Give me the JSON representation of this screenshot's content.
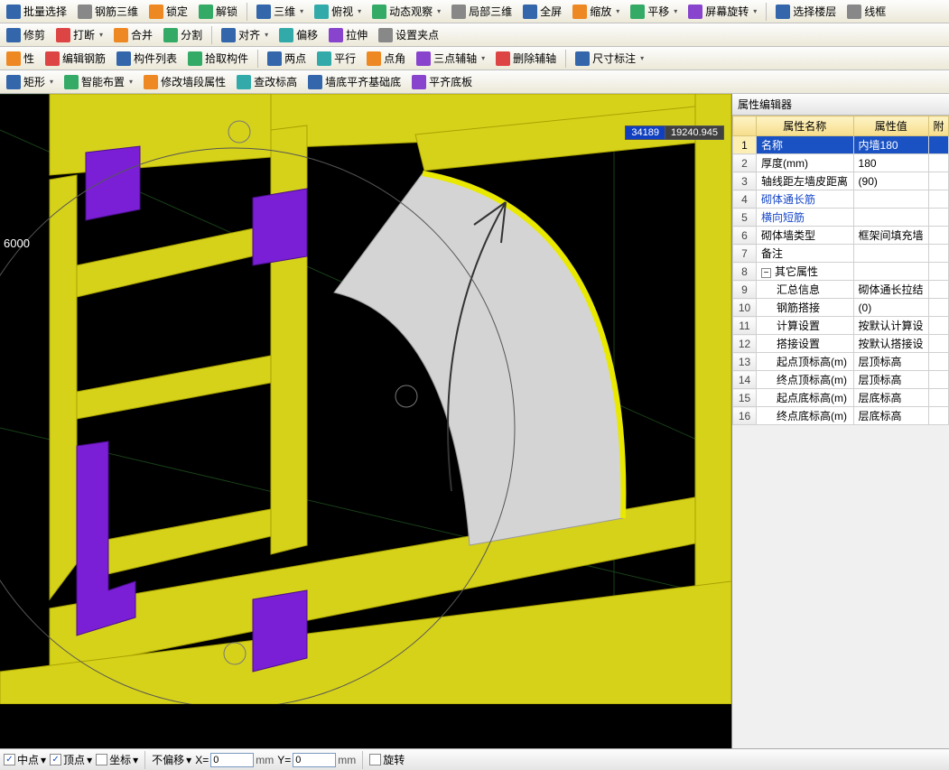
{
  "colors": {
    "toolbar_bg_top": "#fdfdfd",
    "toolbar_bg_bot": "#ece9d8",
    "viewport_bg": "#000000",
    "wall_fill": "#d6d21a",
    "wall_dark": "#a8a200",
    "column_fill": "#7a1fd6",
    "curved_slab": "#d4d4d4",
    "grid_line": "#184018",
    "selection_blue": "#1a52c4",
    "header_yellow_top": "#fdf3c5",
    "header_yellow_bot": "#f7dd8b"
  },
  "toolbars": {
    "row1": [
      {
        "label": "批量选择",
        "icon": "blue"
      },
      {
        "label": "钢筋三维",
        "icon": "gray"
      },
      {
        "label": "锁定",
        "icon": "orange"
      },
      {
        "label": "解锁",
        "icon": "green"
      },
      {
        "sep": true
      },
      {
        "label": "三维",
        "icon": "blue",
        "dd": true
      },
      {
        "label": "俯视",
        "icon": "cyan",
        "dd": true
      },
      {
        "label": "动态观察",
        "icon": "green",
        "dd": true
      },
      {
        "label": "局部三维",
        "icon": "gray"
      },
      {
        "label": "全屏",
        "icon": "blue"
      },
      {
        "label": "缩放",
        "icon": "orange",
        "dd": true
      },
      {
        "label": "平移",
        "icon": "green",
        "dd": true
      },
      {
        "label": "屏幕旋转",
        "icon": "purple",
        "dd": true
      },
      {
        "sep": true
      },
      {
        "label": "选择楼层",
        "icon": "blue"
      },
      {
        "label": "线框",
        "icon": "gray"
      }
    ],
    "row2": [
      {
        "label": "修剪",
        "icon": "blue"
      },
      {
        "label": "打断",
        "icon": "red",
        "dd": true
      },
      {
        "label": "合并",
        "icon": "orange"
      },
      {
        "label": "分割",
        "icon": "green"
      },
      {
        "sep": true
      },
      {
        "label": "对齐",
        "icon": "blue",
        "dd": true
      },
      {
        "label": "偏移",
        "icon": "cyan"
      },
      {
        "label": "拉伸",
        "icon": "purple"
      },
      {
        "label": "设置夹点",
        "icon": "gray"
      }
    ],
    "row3": [
      {
        "label": "性",
        "icon": "orange"
      },
      {
        "label": "编辑钢筋",
        "icon": "red"
      },
      {
        "label": "构件列表",
        "icon": "blue"
      },
      {
        "label": "拾取构件",
        "icon": "green"
      },
      {
        "sep": true
      },
      {
        "label": "两点",
        "icon": "blue"
      },
      {
        "label": "平行",
        "icon": "cyan"
      },
      {
        "label": "点角",
        "icon": "orange"
      },
      {
        "label": "三点辅轴",
        "icon": "purple",
        "dd": true
      },
      {
        "label": "删除辅轴",
        "icon": "red"
      },
      {
        "sep": true
      },
      {
        "label": "尺寸标注",
        "icon": "blue",
        "dd": true
      }
    ],
    "row4": [
      {
        "label": "矩形",
        "icon": "blue",
        "dd": true
      },
      {
        "label": "智能布置",
        "icon": "green",
        "dd": true
      },
      {
        "label": "修改墙段属性",
        "icon": "orange"
      },
      {
        "label": "查改标高",
        "icon": "cyan"
      },
      {
        "label": "墙底平齐基础底",
        "icon": "blue"
      },
      {
        "label": "平齐底板",
        "icon": "purple"
      }
    ]
  },
  "viewport": {
    "axis_label": "6000",
    "coord1": "34189",
    "coord2": "19240.945"
  },
  "panel": {
    "title": "属性编辑器",
    "header": {
      "name": "属性名称",
      "value": "属性值",
      "extra": "附"
    },
    "rows": [
      {
        "n": 1,
        "name": "名称",
        "value": "内墙180",
        "link": true,
        "sel": true
      },
      {
        "n": 2,
        "name": "厚度(mm)",
        "value": "180"
      },
      {
        "n": 3,
        "name": "轴线距左墙皮距离",
        "value": "(90)"
      },
      {
        "n": 4,
        "name": "砌体通长筋",
        "value": "",
        "link": true
      },
      {
        "n": 5,
        "name": "横向短筋",
        "value": "",
        "link": true
      },
      {
        "n": 6,
        "name": "砌体墙类型",
        "value": "框架间填充墙"
      },
      {
        "n": 7,
        "name": "备注",
        "value": ""
      },
      {
        "n": 8,
        "name": "其它属性",
        "value": "",
        "group": true
      },
      {
        "n": 9,
        "name": "汇总信息",
        "value": "砌体通长拉结",
        "indent": true
      },
      {
        "n": 10,
        "name": "钢筋搭接",
        "value": "(0)",
        "indent": true
      },
      {
        "n": 11,
        "name": "计算设置",
        "value": "按默认计算设",
        "indent": true
      },
      {
        "n": 12,
        "name": "搭接设置",
        "value": "按默认搭接设",
        "indent": true
      },
      {
        "n": 13,
        "name": "起点顶标高(m)",
        "value": "层顶标高",
        "indent": true
      },
      {
        "n": 14,
        "name": "终点顶标高(m)",
        "value": "层顶标高",
        "indent": true
      },
      {
        "n": 15,
        "name": "起点底标高(m)",
        "value": "层底标高",
        "indent": true
      },
      {
        "n": 16,
        "name": "终点底标高(m)",
        "value": "层底标高",
        "indent": true
      }
    ]
  },
  "statusbar": {
    "midpoint": {
      "label": "中点",
      "checked": true
    },
    "vertex": {
      "label": "顶点",
      "checked": true
    },
    "coord": {
      "label": "坐标",
      "checked": false
    },
    "offset_mode": "不偏移",
    "x_val": "0",
    "y_val": "0",
    "unit": "mm",
    "rotate": {
      "label": "旋转",
      "checked": false
    }
  }
}
